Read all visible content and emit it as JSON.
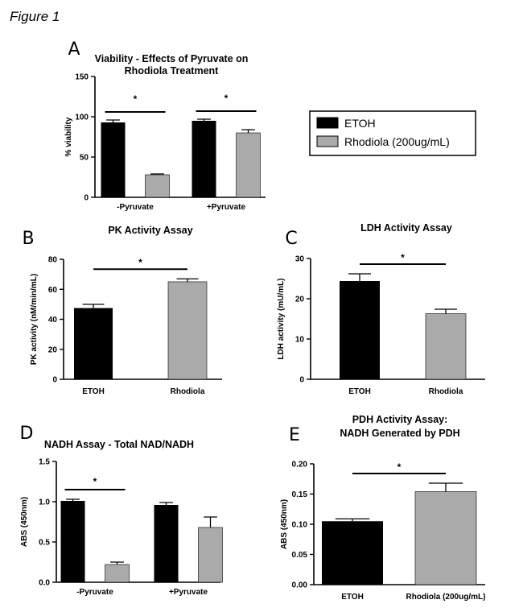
{
  "figure_title": "Figure 1",
  "colors": {
    "etoh": "#000000",
    "rhodiola": "#aaaaaa",
    "axis": "#000000"
  },
  "legend": {
    "entries": [
      {
        "label": "ETOH",
        "color": "#000000"
      },
      {
        "label": "Rhodiola (200ug/mL)",
        "color": "#aaaaaa"
      }
    ]
  },
  "chart_data": [
    {
      "panel": "A",
      "type": "bar",
      "title": [
        "Viability - Effects of Pyruvate on",
        "Rhodiola Treatment"
      ],
      "ylabel": "% viability",
      "ylim": [
        0,
        150
      ],
      "yticks": [
        0,
        50,
        100,
        150
      ],
      "ytick_labels": [
        "0",
        "50",
        "100",
        "150"
      ],
      "categories": [
        "-Pyruvate",
        "+Pyruvate"
      ],
      "series": [
        {
          "name": "ETOH",
          "color": "#000000",
          "values": [
            93,
            95
          ],
          "errors": [
            3,
            2
          ]
        },
        {
          "name": "Rhodiola (200ug/mL)",
          "color": "#aaaaaa",
          "values": [
            28,
            80
          ],
          "errors": [
            1,
            4
          ]
        }
      ],
      "significance": [
        {
          "group": 0,
          "label": "*"
        },
        {
          "group": 1,
          "label": "*"
        }
      ]
    },
    {
      "panel": "B",
      "type": "bar",
      "title": [
        "PK Activity Assay"
      ],
      "ylabel": "PK activity (nM/min/mL)",
      "ylim": [
        0,
        80
      ],
      "yticks": [
        0,
        20,
        40,
        60,
        80
      ],
      "ytick_labels": [
        "0",
        "20",
        "40",
        "60",
        "80"
      ],
      "categories": [
        "ETOH",
        "Rhodiola"
      ],
      "values": [
        47.5,
        65
      ],
      "errors": [
        2.5,
        2
      ],
      "colors": [
        "#000000",
        "#aaaaaa"
      ],
      "significance": [
        {
          "label": "*"
        }
      ]
    },
    {
      "panel": "C",
      "type": "bar",
      "title": [
        "LDH Activity Assay"
      ],
      "ylabel": "LDH activity (mU/mL)",
      "ylim": [
        0,
        30
      ],
      "yticks": [
        0,
        10,
        20,
        30
      ],
      "ytick_labels": [
        "0",
        "10",
        "20",
        "30"
      ],
      "categories": [
        "ETOH",
        "Rhodiola"
      ],
      "values": [
        24.4,
        16.3
      ],
      "errors": [
        1.8,
        1.1
      ],
      "colors": [
        "#000000",
        "#aaaaaa"
      ],
      "significance": [
        {
          "label": "*"
        }
      ]
    },
    {
      "panel": "D",
      "type": "bar",
      "title": [
        "NADH Assay - Total NAD/NADH"
      ],
      "ylabel": "ABS (450nm)",
      "ylim": [
        0,
        1.5
      ],
      "yticks": [
        0,
        0.5,
        1.0,
        1.5
      ],
      "ytick_labels": [
        "0.0",
        "0.5",
        "1.0",
        "1.5"
      ],
      "categories": [
        "-Pyruvate",
        "+Pyruvate"
      ],
      "series": [
        {
          "name": "ETOH",
          "color": "#000000",
          "values": [
            1.01,
            0.96
          ],
          "errors": [
            0.02,
            0.03
          ]
        },
        {
          "name": "Rhodiola (200ug/mL)",
          "color": "#aaaaaa",
          "values": [
            0.22,
            0.68
          ],
          "errors": [
            0.03,
            0.13
          ]
        }
      ],
      "significance": [
        {
          "group": 0,
          "label": "*"
        }
      ]
    },
    {
      "panel": "E",
      "type": "bar",
      "title": [
        "PDH Activity Assay:",
        "NADH Generated by PDH"
      ],
      "ylabel": "ABS (450nm)",
      "ylim": [
        0,
        0.2
      ],
      "yticks": [
        0,
        0.05,
        0.1,
        0.15,
        0.2
      ],
      "ytick_labels": [
        "0.00",
        "0.05",
        "0.10",
        "0.15",
        "0.20"
      ],
      "categories": [
        "ETOH",
        "Rhodiola (200ug/mL)"
      ],
      "values": [
        0.105,
        0.154
      ],
      "errors": [
        0.004,
        0.014
      ],
      "colors": [
        "#000000",
        "#aaaaaa"
      ],
      "significance": [
        {
          "label": "*"
        }
      ]
    }
  ]
}
